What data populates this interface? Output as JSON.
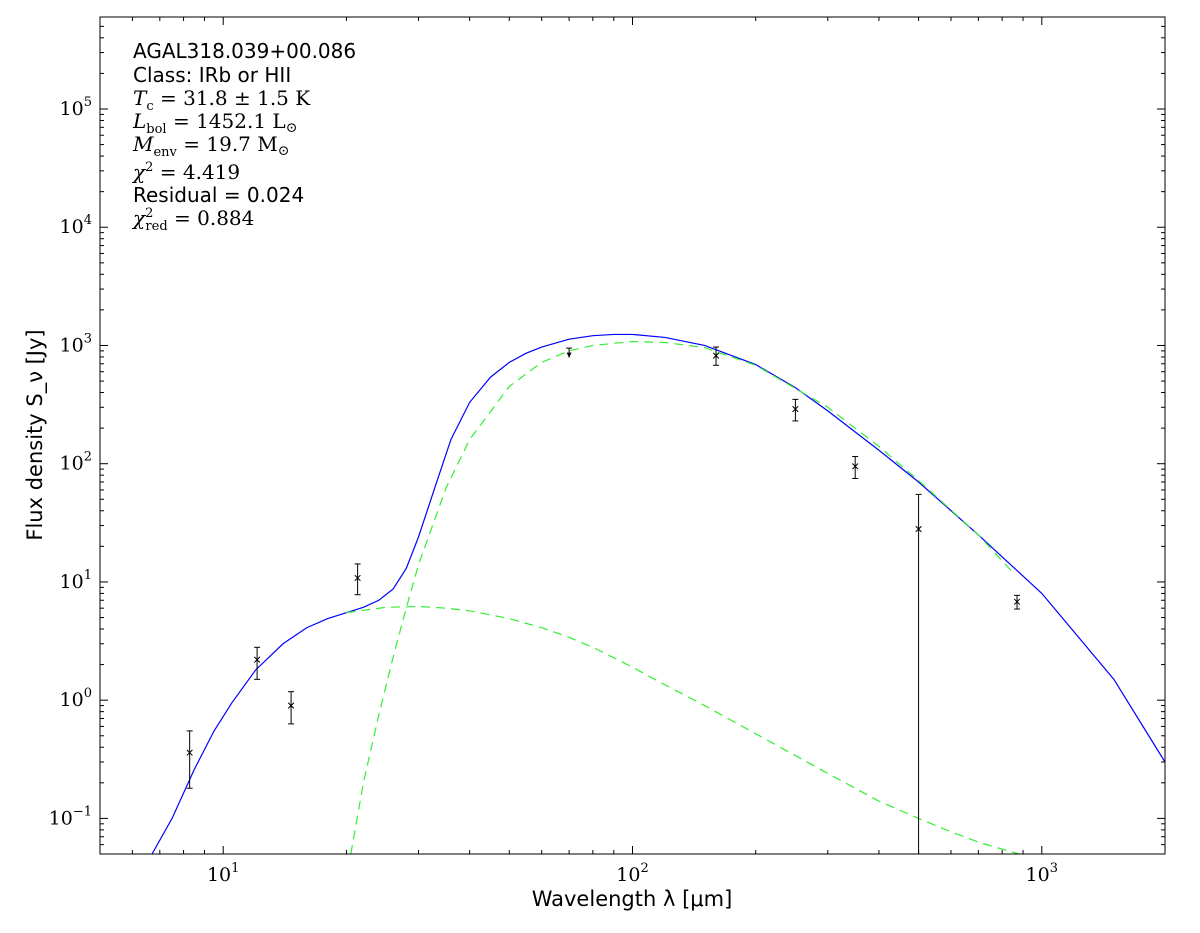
{
  "chart_data": {
    "type": "line",
    "x_scale": "log",
    "y_scale": "log",
    "xlim": [
      5,
      2000
    ],
    "ylim": [
      0.05,
      600000
    ],
    "xlabel": "Wavelength λ [μm]",
    "ylabel": "Flux density S_ν [Jy]",
    "x_ticks": [
      {
        "value": 10,
        "base": "10",
        "exp": "1"
      },
      {
        "value": 100,
        "base": "10",
        "exp": "2"
      },
      {
        "value": 1000,
        "base": "10",
        "exp": "3"
      }
    ],
    "y_ticks": [
      {
        "value": 0.1,
        "base": "10",
        "exp": "−1"
      },
      {
        "value": 1,
        "base": "10",
        "exp": "0"
      },
      {
        "value": 10,
        "base": "10",
        "exp": "1"
      },
      {
        "value": 100,
        "base": "10",
        "exp": "2"
      },
      {
        "value": 1000,
        "base": "10",
        "exp": "3"
      },
      {
        "value": 10000,
        "base": "10",
        "exp": "4"
      },
      {
        "value": 100000,
        "base": "10",
        "exp": "5"
      }
    ],
    "annotations": {
      "source": "AGAL318.039+00.086",
      "class_line": "Class: IRb or HII",
      "tc_sym": "T",
      "tc_sub": "c",
      "tc_val": " = 31.8 ± 1.5 K",
      "lbol_sym": "L",
      "lbol_sub": "bol",
      "lbol_val": " = 1452.1 L",
      "lbol_unit": "⊙",
      "menv_sym": "M",
      "menv_sub": "env",
      "menv_val": " = 19.7 M",
      "menv_unit": "⊙",
      "chi_sym": "χ",
      "chi_sup": "2",
      "chi_val": " = 4.419",
      "residual_line": "Residual = 0.024",
      "chired_sym": "χ",
      "chired_sup": "2",
      "chired_sub": "red",
      "chired_val": " = 0.884"
    },
    "series": [
      {
        "type": "line",
        "color": "#0000ff",
        "style": "solid",
        "x": [
          6.7,
          7.5,
          8.5,
          9.5,
          10.5,
          12,
          14,
          16,
          18,
          20,
          22,
          24,
          26,
          28,
          30,
          33,
          36,
          40,
          45,
          50,
          55,
          60,
          70,
          80,
          90,
          100,
          120,
          150,
          200,
          250,
          300,
          400,
          500,
          700,
          1000,
          1500,
          2000
        ],
        "y": [
          0.05,
          0.1,
          0.26,
          0.55,
          0.95,
          1.8,
          3.0,
          4.1,
          4.9,
          5.5,
          6.1,
          7.0,
          8.7,
          13,
          24,
          65,
          160,
          330,
          540,
          720,
          860,
          970,
          1130,
          1210,
          1240,
          1240,
          1170,
          1000,
          690,
          440,
          280,
          130,
          70,
          25,
          8,
          1.5,
          0.3
        ]
      },
      {
        "type": "line",
        "color": "#33ee33",
        "style": "dashed",
        "x": [
          20.5,
          21,
          22,
          24,
          26,
          28,
          30,
          32,
          35,
          40,
          50,
          60,
          70,
          80,
          100,
          120,
          150,
          200,
          300,
          400,
          500,
          700,
          850
        ],
        "y": [
          0.05,
          0.08,
          0.2,
          0.75,
          2.3,
          6.0,
          14,
          26,
          62,
          160,
          450,
          720,
          900,
          1000,
          1080,
          1060,
          960,
          680,
          300,
          140,
          72,
          25,
          12
        ]
      },
      {
        "type": "line",
        "color": "#33ee33",
        "style": "dashed",
        "x": [
          20,
          25,
          30,
          35,
          40,
          50,
          60,
          70,
          80,
          100,
          120,
          150,
          200,
          250,
          300,
          400,
          500,
          600,
          700,
          800,
          880
        ],
        "y": [
          5.5,
          6.1,
          6.2,
          6.0,
          5.7,
          4.9,
          4.1,
          3.4,
          2.8,
          1.9,
          1.35,
          0.9,
          0.52,
          0.34,
          0.24,
          0.14,
          0.1,
          0.077,
          0.063,
          0.055,
          0.05
        ]
      }
    ],
    "data_points": [
      {
        "x": 8.28,
        "y": 0.36,
        "err": [
          0.18,
          0.55
        ],
        "upper_limit": false
      },
      {
        "x": 12.1,
        "y": 2.2,
        "err": [
          1.5,
          2.8
        ],
        "upper_limit": false
      },
      {
        "x": 14.65,
        "y": 0.9,
        "err": [
          0.63,
          1.18
        ],
        "upper_limit": false
      },
      {
        "x": 21.3,
        "y": 10.8,
        "err": [
          7.8,
          14.2
        ],
        "upper_limit": false
      },
      {
        "x": 70,
        "y": 950,
        "err": [
          790,
          950
        ],
        "upper_limit": true
      },
      {
        "x": 160,
        "y": 820,
        "err": [
          680,
          970
        ],
        "upper_limit": false
      },
      {
        "x": 250,
        "y": 290,
        "err": [
          230,
          350
        ],
        "upper_limit": false
      },
      {
        "x": 350,
        "y": 95,
        "err": [
          75,
          115
        ],
        "upper_limit": false
      },
      {
        "x": 500,
        "y": 28,
        "err": [
          0.05,
          55
        ],
        "upper_limit": false
      },
      {
        "x": 870,
        "y": 6.8,
        "err": [
          5.9,
          7.7
        ],
        "upper_limit": false
      }
    ]
  }
}
